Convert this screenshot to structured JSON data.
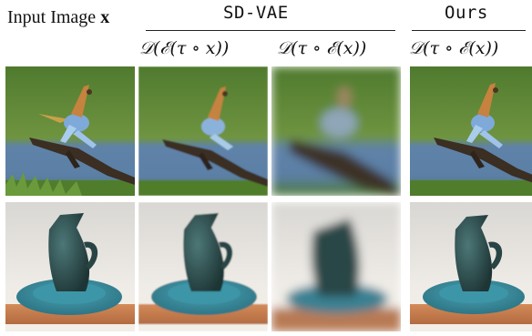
{
  "header": {
    "input_label": "Input Image",
    "input_symbol": "x",
    "sdvae_label": "SD-VAE",
    "ours_label": "Ours",
    "col2_formula": "𝒟(ℰ(τ ∘ x))",
    "col3_formula": "𝒟(τ ∘ ℰ(x))",
    "col4_formula": "𝒟(τ ∘ ℰ(x))"
  },
  "rows": [
    {
      "subject": "bird on branch",
      "cells": [
        "input-sharp",
        "sdvae-decode-transformed",
        "sdvae-transform-latent-blurred",
        "ours-transform-latent"
      ]
    },
    {
      "subject": "teal pitcher on plate",
      "cells": [
        "input-sharp",
        "sdvae-decode-transformed",
        "sdvae-transform-latent-blurred",
        "ours-transform-latent"
      ]
    }
  ],
  "colors": {
    "grass": "#5e8a3a",
    "water": "#5f82a8",
    "branch": "#3b2e22",
    "pitcher": "#2f4f4f",
    "plate": "#3f8fa0",
    "table": "#c07a4a",
    "wall": "#eeeae4"
  }
}
